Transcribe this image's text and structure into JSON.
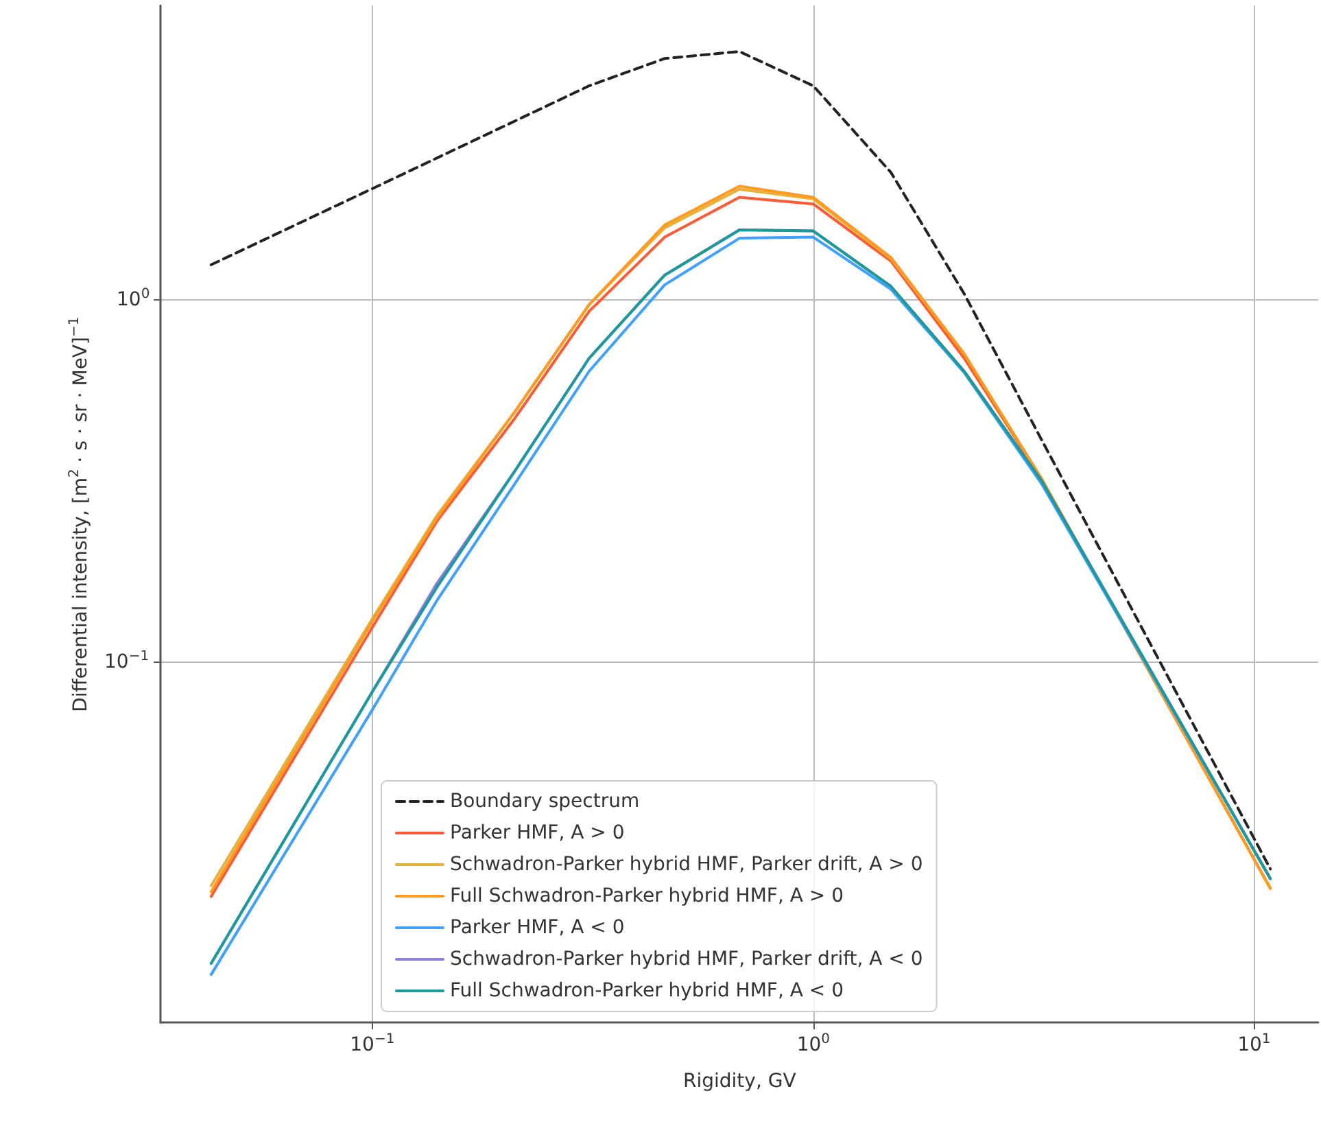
{
  "chart_data": {
    "type": "line",
    "xlabel": "Rigidity, GV",
    "ylabel": "Differential intensity, [m$^{2}$ · s · sr · MeV]$^{−1}$",
    "x": [
      0.043,
      0.1,
      0.14,
      0.21,
      0.31,
      0.46,
      0.68,
      1.0,
      1.5,
      2.2,
      3.3,
      10.9
    ],
    "series": [
      {
        "name": "Boundary spectrum",
        "color": "#222222",
        "line_style": "dashed",
        "x": [
          0.043,
          0.1,
          0.31,
          0.46,
          0.68,
          1.0,
          1.5,
          2.2,
          3.3,
          10.9
        ],
        "values": [
          1.25,
          2.03,
          3.9,
          4.64,
          4.85,
          3.9,
          2.25,
          1.04,
          0.41,
          0.0268
        ]
      },
      {
        "name": "Parker HMF, A > 0",
        "color": "#fc5a35",
        "values": [
          0.0225,
          0.125,
          0.245,
          0.47,
          0.93,
          1.49,
          1.92,
          1.84,
          1.28,
          0.69,
          0.32,
          0.0237
        ]
      },
      {
        "name": "Schwadron-Parker hybrid HMF, Parker drift, A > 0",
        "color": "#e5b33d",
        "values": [
          0.0241,
          0.132,
          0.254,
          0.49,
          0.97,
          1.58,
          2.02,
          1.9,
          1.3,
          0.71,
          0.32,
          0.0237
        ]
      },
      {
        "name": "Full Schwadron-Parker hybrid HMF, A > 0",
        "color": "#ff9a1f",
        "values": [
          0.0232,
          0.13,
          0.25,
          0.49,
          0.97,
          1.61,
          2.06,
          1.92,
          1.31,
          0.71,
          0.32,
          0.0237
        ]
      },
      {
        "name": "Parker HMF, A < 0",
        "color": "#3fa0ff",
        "values": [
          0.0137,
          0.074,
          0.148,
          0.31,
          0.635,
          1.1,
          1.48,
          1.49,
          1.07,
          0.63,
          0.31,
          0.0252
        ]
      },
      {
        "name": "Schwadron-Parker hybrid HMF, Parker drift, A < 0",
        "color": "#8c7fe0",
        "values": [
          0.0147,
          0.083,
          0.165,
          0.336,
          0.69,
          1.17,
          1.56,
          1.55,
          1.09,
          0.635,
          0.316,
          0.0252
        ]
      },
      {
        "name": "Full Schwadron-Parker hybrid HMF, A < 0",
        "color": "#1a9a9a",
        "values": [
          0.0147,
          0.083,
          0.161,
          0.336,
          0.69,
          1.17,
          1.56,
          1.55,
          1.09,
          0.635,
          0.316,
          0.0252
        ]
      }
    ],
    "log": "xy",
    "xlim": [
      0.033,
      14
    ],
    "ylim": [
      0.0101,
      6.5
    ],
    "xticks": [
      {
        "value": 0.1,
        "label": "10$^{−1}$"
      },
      {
        "value": 1,
        "label": "10$^{0}$"
      },
      {
        "value": 10,
        "label": "10$^{1}$"
      }
    ],
    "yticks": [
      {
        "value": 0.1,
        "label": "10$^{−1}$"
      },
      {
        "value": 1,
        "label": "10$^{0}$"
      }
    ],
    "grid": true,
    "legend": "bottom",
    "marker": "none",
    "line_style": "solid"
  }
}
